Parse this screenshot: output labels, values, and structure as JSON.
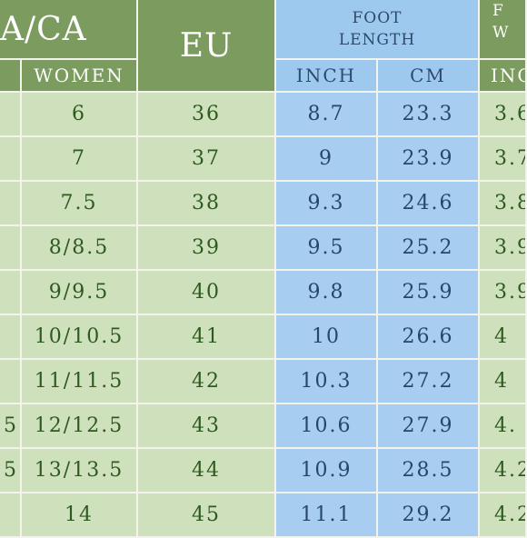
{
  "headers": {
    "usa_ca": "A/CA",
    "women": "WOMEN",
    "eu": "EU",
    "foot_length_line1": "FOOT",
    "foot_length_line2": "LENGTH",
    "inch": "INCH",
    "cm": "CM",
    "right_top": "F\nW",
    "right_sub": "INC"
  },
  "rows": [
    {
      "men": "",
      "women": "6",
      "eu": "36",
      "inch": "8.7",
      "cm": "23.3",
      "right": "3.6"
    },
    {
      "men": "",
      "women": "7",
      "eu": "37",
      "inch": "9",
      "cm": "23.9",
      "right": "3.7"
    },
    {
      "men": "",
      "women": "7.5",
      "eu": "38",
      "inch": "9.3",
      "cm": "24.6",
      "right": "3.8"
    },
    {
      "men": "",
      "women": "8/8.5",
      "eu": "39",
      "inch": "9.5",
      "cm": "25.2",
      "right": "3.9"
    },
    {
      "men": "",
      "women": "9/9.5",
      "eu": "40",
      "inch": "9.8",
      "cm": "25.9",
      "right": "3.9"
    },
    {
      "men": "",
      "women": "10/10.5",
      "eu": "41",
      "inch": "10",
      "cm": "26.6",
      "right": "4"
    },
    {
      "men": "",
      "women": "11/11.5",
      "eu": "42",
      "inch": "10.3",
      "cm": "27.2",
      "right": "4"
    },
    {
      "men": "5",
      "women": "12/12.5",
      "eu": "43",
      "inch": "10.6",
      "cm": "27.9",
      "right": "4."
    },
    {
      "men": "5",
      "women": "13/13.5",
      "eu": "44",
      "inch": "10.9",
      "cm": "28.5",
      "right": "4.2"
    },
    {
      "men": "",
      "women": "14",
      "eu": "45",
      "inch": "11.1",
      "cm": "29.2",
      "right": "4.2"
    }
  ]
}
